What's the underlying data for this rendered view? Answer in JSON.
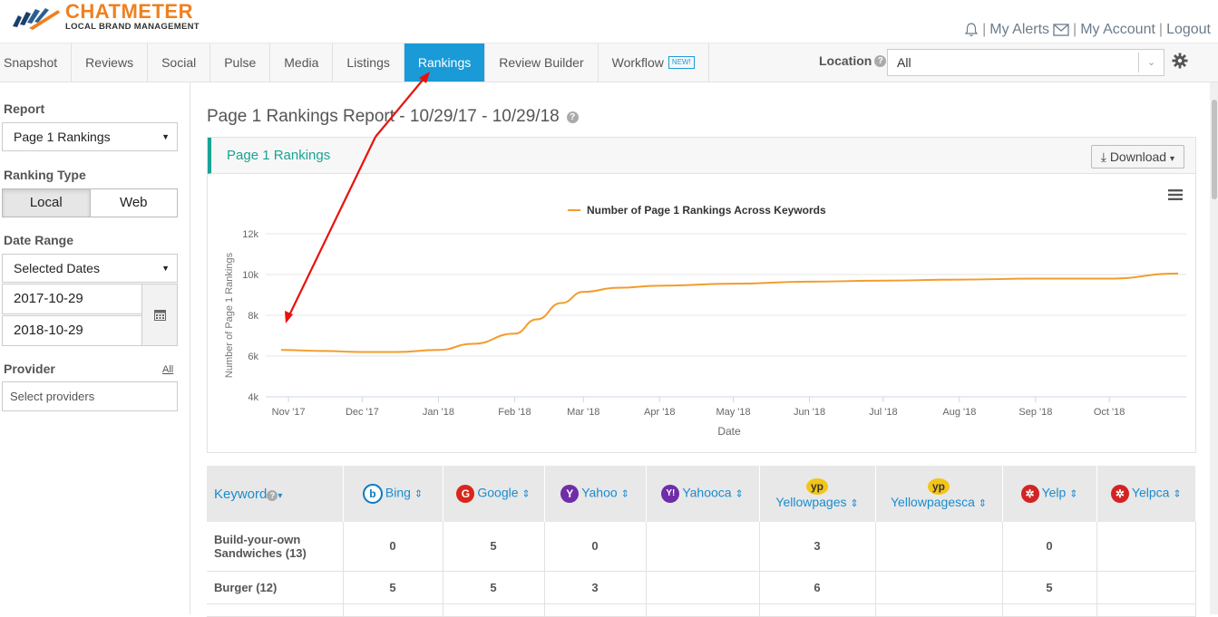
{
  "brand": {
    "name": "CHATMETER",
    "tagline": "LOCAL BRAND MANAGEMENT"
  },
  "top_links": {
    "alerts": "My Alerts",
    "account": "My Account",
    "logout": "Logout",
    "separator": "|"
  },
  "nav": {
    "tabs": [
      "Snapshot",
      "Reviews",
      "Social",
      "Pulse",
      "Media",
      "Listings",
      "Rankings",
      "Review Builder",
      "Workflow"
    ],
    "active_tab": "Rankings",
    "new_badge": "NEW!",
    "location_label": "Location",
    "location_value": "All"
  },
  "sidebar": {
    "report_label": "Report",
    "report_value": "Page 1 Rankings",
    "ranking_type_label": "Ranking Type",
    "ranking_local": "Local",
    "ranking_web": "Web",
    "date_range_label": "Date Range",
    "date_range_value": "Selected Dates",
    "start_date": "2017-10-29",
    "end_date": "2018-10-29",
    "provider_label": "Provider",
    "provider_all": "All",
    "provider_placeholder": "Select providers"
  },
  "main": {
    "page_title": "Page 1 Rankings Report - 10/29/17 - 10/29/18",
    "panel_title": "Page 1 Rankings",
    "download_label": "Download"
  },
  "chart_data": {
    "type": "line",
    "series": [
      {
        "name": "Number of Page 1 Rankings Across Keywords",
        "color": "#f39c2c",
        "x": [
          "2017-10-29",
          "2017-11-15",
          "2017-12-01",
          "2017-12-15",
          "2018-01-01",
          "2018-01-15",
          "2018-02-01",
          "2018-02-10",
          "2018-02-20",
          "2018-03-01",
          "2018-03-15",
          "2018-04-01",
          "2018-05-01",
          "2018-06-01",
          "2018-07-01",
          "2018-08-01",
          "2018-09-01",
          "2018-10-01",
          "2018-10-29"
        ],
        "values": [
          6300,
          6250,
          6200,
          6200,
          6300,
          6600,
          7100,
          7800,
          8600,
          9150,
          9350,
          9450,
          9550,
          9650,
          9700,
          9750,
          9800,
          9800,
          10050
        ]
      }
    ],
    "xlabel": "Date",
    "ylabel": "Number of Page 1 Rankings",
    "x_ticks": [
      "Nov '17",
      "Dec '17",
      "Jan '18",
      "Feb '18",
      "Mar '18",
      "Apr '18",
      "May '18",
      "Jun '18",
      "Jul '18",
      "Aug '18",
      "Sep '18",
      "Oct '18"
    ],
    "y_ticks": [
      "4k",
      "6k",
      "8k",
      "10k",
      "12k"
    ],
    "ylim": [
      4000,
      12000
    ],
    "legend_position": "top-center",
    "grid": true
  },
  "table": {
    "keyword_header": "Keyword",
    "providers": [
      {
        "name": "Bing",
        "color": "#0a7bc2",
        "glyph": "b"
      },
      {
        "name": "Google",
        "color": "#d9261c",
        "glyph": "G"
      },
      {
        "name": "Yahoo",
        "color": "#6f2da8",
        "glyph": "Y"
      },
      {
        "name": "Yahooca",
        "color": "#6f2da8",
        "glyph": "Y!"
      },
      {
        "name": "Yellowpages",
        "color": "#f3c517",
        "glyph": "yp"
      },
      {
        "name": "Yellowpagesca",
        "color": "#f3c517",
        "glyph": "yp"
      },
      {
        "name": "Yelp",
        "color": "#d32323",
        "glyph": "✲"
      },
      {
        "name": "Yelpca",
        "color": "#d32323",
        "glyph": "✲"
      }
    ],
    "rows": [
      {
        "keyword": "Build-your-own Sandwiches (13)",
        "values": [
          "0",
          "5",
          "0",
          "",
          "3",
          "",
          "0",
          ""
        ]
      },
      {
        "keyword": "Burger (12)",
        "values": [
          "5",
          "5",
          "3",
          "",
          "6",
          "",
          "5",
          ""
        ]
      }
    ]
  },
  "colors": {
    "accent": "#1a9bd7",
    "brand": "#f0801e",
    "teal": "#1aa394",
    "line": "#f39c2c",
    "arrow": "#e8120c"
  }
}
